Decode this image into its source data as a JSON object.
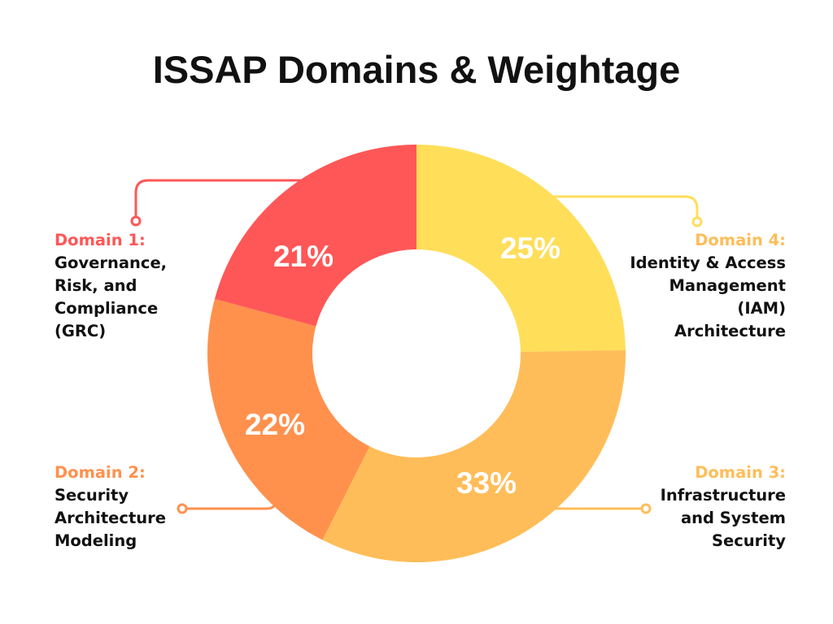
{
  "chart_data": {
    "type": "pie",
    "donut": true,
    "title": "ISSAP Domains & Weightage",
    "slices": [
      {
        "label": "Domain 4:",
        "description": [
          "Identity & Access",
          "Management",
          "(IAM)",
          "Architecture"
        ],
        "value": 25,
        "data_label": "25%",
        "color": "#FFDE59",
        "label_color": "#FFBD59"
      },
      {
        "label": "Domain 3:",
        "description": [
          "Infrastructure",
          "and System",
          "Security"
        ],
        "value": 33,
        "data_label": "33%",
        "color": "#FFBD59",
        "label_color": "#FFBD59"
      },
      {
        "label": "Domain 2:",
        "description": [
          "Security",
          "Architecture",
          "Modeling"
        ],
        "value": 22,
        "data_label": "22%",
        "color": "#FF914D",
        "label_color": "#FF914D"
      },
      {
        "label": "Domain 1:",
        "description": [
          "Governance,",
          "Risk, and",
          "Compliance",
          "(GRC)"
        ],
        "value": 21,
        "data_label": "21%",
        "color": "#FF5757",
        "label_color": "#FF5757"
      }
    ],
    "start": "top",
    "direction": "clockwise"
  }
}
